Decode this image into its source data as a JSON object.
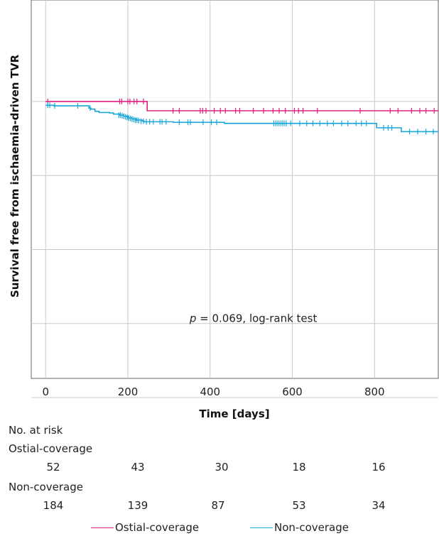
{
  "chart_data": {
    "type": "line",
    "subtype": "kaplan-meier",
    "ylabel": "Survival free from ischaemia-driven TVR",
    "xlabel": "Time [days]",
    "xlim": [
      -35,
      955
    ],
    "ylim": [
      0.9495,
      1.0185
    ],
    "xticks": [
      0,
      200,
      400,
      600,
      800
    ],
    "ygrid": [
      1.0,
      0.9865,
      0.973,
      0.9595,
      0.946
    ],
    "grid": true,
    "annotation": {
      "italic": "p",
      "text": " = 0.069, log-rank test",
      "x": 350,
      "y": 0.9598
    },
    "series": [
      {
        "name": "Ostial-coverage",
        "color": "#e0207e",
        "steps": [
          [
            0,
            1.0
          ],
          [
            247,
            0.9983
          ],
          [
            955,
            0.9983
          ]
        ],
        "censors": [
          [
            5,
            1.0
          ],
          [
            180,
            1.0
          ],
          [
            185,
            1.0
          ],
          [
            200,
            1.0
          ],
          [
            205,
            1.0
          ],
          [
            215,
            1.0
          ],
          [
            222,
            1.0
          ],
          [
            238,
            1.0
          ],
          [
            310,
            0.9983
          ],
          [
            325,
            0.9983
          ],
          [
            376,
            0.9983
          ],
          [
            382,
            0.9983
          ],
          [
            390,
            0.9983
          ],
          [
            410,
            0.9983
          ],
          [
            425,
            0.9983
          ],
          [
            437,
            0.9983
          ],
          [
            462,
            0.9983
          ],
          [
            472,
            0.9983
          ],
          [
            505,
            0.9983
          ],
          [
            530,
            0.9983
          ],
          [
            553,
            0.9983
          ],
          [
            568,
            0.9983
          ],
          [
            583,
            0.9983
          ],
          [
            605,
            0.9983
          ],
          [
            615,
            0.9983
          ],
          [
            626,
            0.9983
          ],
          [
            661,
            0.9983
          ],
          [
            765,
            0.9983
          ],
          [
            838,
            0.9983
          ],
          [
            857,
            0.9983
          ],
          [
            890,
            0.9983
          ],
          [
            910,
            0.9983
          ],
          [
            925,
            0.9983
          ],
          [
            945,
            0.9983
          ]
        ]
      },
      {
        "name": "Non-coverage",
        "color": "#1aa7dc",
        "steps": [
          [
            0,
            0.9993
          ],
          [
            20,
            0.9992
          ],
          [
            105,
            0.9988
          ],
          [
            110,
            0.9986
          ],
          [
            120,
            0.9982
          ],
          [
            130,
            0.998
          ],
          [
            155,
            0.9979
          ],
          [
            165,
            0.9977
          ],
          [
            180,
            0.9975
          ],
          [
            190,
            0.9973
          ],
          [
            200,
            0.997
          ],
          [
            210,
            0.9968
          ],
          [
            220,
            0.9966
          ],
          [
            235,
            0.9964
          ],
          [
            240,
            0.9963
          ],
          [
            300,
            0.9963
          ],
          [
            310,
            0.9962
          ],
          [
            420,
            0.9962
          ],
          [
            435,
            0.996
          ],
          [
            800,
            0.996
          ],
          [
            805,
            0.9952
          ],
          [
            860,
            0.9952
          ],
          [
            865,
            0.9945
          ],
          [
            955,
            0.9945
          ]
        ],
        "censors": [
          [
            5,
            0.9993
          ],
          [
            10,
            0.9993
          ],
          [
            22,
            0.9992
          ],
          [
            78,
            0.9992
          ],
          [
            108,
            0.9988
          ],
          [
            178,
            0.9975
          ],
          [
            182,
            0.9975
          ],
          [
            186,
            0.9974
          ],
          [
            190,
            0.9973
          ],
          [
            194,
            0.9972
          ],
          [
            198,
            0.9971
          ],
          [
            202,
            0.997
          ],
          [
            206,
            0.9969
          ],
          [
            210,
            0.9968
          ],
          [
            214,
            0.9967
          ],
          [
            218,
            0.9966
          ],
          [
            222,
            0.9966
          ],
          [
            226,
            0.9965
          ],
          [
            232,
            0.9964
          ],
          [
            238,
            0.9964
          ],
          [
            245,
            0.9963
          ],
          [
            253,
            0.9963
          ],
          [
            262,
            0.9963
          ],
          [
            278,
            0.9963
          ],
          [
            283,
            0.9963
          ],
          [
            293,
            0.9963
          ],
          [
            325,
            0.9962
          ],
          [
            346,
            0.9962
          ],
          [
            352,
            0.9962
          ],
          [
            383,
            0.9962
          ],
          [
            403,
            0.9962
          ],
          [
            416,
            0.9962
          ],
          [
            555,
            0.996
          ],
          [
            560,
            0.996
          ],
          [
            565,
            0.996
          ],
          [
            570,
            0.996
          ],
          [
            575,
            0.996
          ],
          [
            580,
            0.996
          ],
          [
            585,
            0.996
          ],
          [
            596,
            0.996
          ],
          [
            618,
            0.996
          ],
          [
            635,
            0.996
          ],
          [
            650,
            0.996
          ],
          [
            667,
            0.996
          ],
          [
            685,
            0.996
          ],
          [
            700,
            0.996
          ],
          [
            720,
            0.996
          ],
          [
            735,
            0.996
          ],
          [
            755,
            0.996
          ],
          [
            768,
            0.996
          ],
          [
            780,
            0.996
          ],
          [
            822,
            0.9952
          ],
          [
            833,
            0.9952
          ],
          [
            842,
            0.9952
          ],
          [
            885,
            0.9945
          ],
          [
            905,
            0.9945
          ],
          [
            925,
            0.9945
          ],
          [
            943,
            0.9945
          ]
        ]
      }
    ]
  },
  "risk_table": {
    "title": "No. at risk",
    "groups": [
      {
        "label": "Ostial-coverage",
        "values": [
          "52",
          "43",
          "30",
          "18",
          "16"
        ]
      },
      {
        "label": "Non-coverage",
        "values": [
          "184",
          "139",
          "87",
          "53",
          "34"
        ]
      }
    ]
  },
  "legend": {
    "items": [
      {
        "label": "Ostial-coverage",
        "color": "#e0207e"
      },
      {
        "label": "Non-coverage",
        "color": "#1aa7dc"
      }
    ]
  }
}
